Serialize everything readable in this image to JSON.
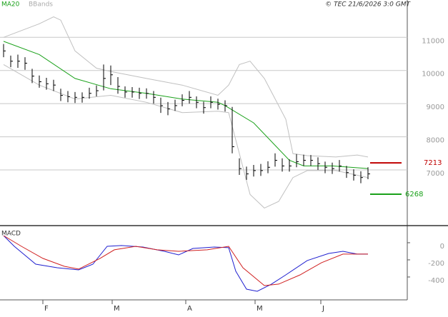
{
  "chart_data": [
    {
      "type": "ohlc",
      "source": "© TEC 21/6/2026 3:0 GMT",
      "xlim": [
        -0.5,
        56.5
      ],
      "xticks": [
        {
          "value": 5.5,
          "label": "F"
        },
        {
          "value": 15.2,
          "label": "M"
        },
        {
          "value": 25.5,
          "label": "A"
        },
        {
          "value": 35.2,
          "label": "M"
        },
        {
          "value": 44.4,
          "label": "J"
        }
      ],
      "ylim": [
        5320,
        11825
      ],
      "yticks": [
        7000,
        8000,
        9000,
        10000,
        11000
      ],
      "grid": true,
      "color": "#000000",
      "x": [
        0,
        1,
        2,
        3,
        4,
        5,
        6,
        7,
        8,
        9,
        10,
        11,
        12,
        13,
        14,
        15,
        16,
        17,
        18,
        19,
        20,
        21,
        22,
        23,
        24,
        25,
        26,
        27,
        28,
        29,
        30,
        31,
        32,
        33,
        34,
        35,
        36,
        37,
        38,
        39,
        40,
        41,
        42,
        43,
        44,
        45,
        46,
        47,
        48,
        49,
        50,
        51
      ],
      "close": [
        10590,
        10280,
        10280,
        10220,
        9830,
        9660,
        9600,
        9560,
        9250,
        9210,
        9190,
        9190,
        9310,
        9390,
        9760,
        9870,
        9520,
        9350,
        9350,
        9310,
        9310,
        9190,
        8940,
        8840,
        8940,
        9100,
        9190,
        9040,
        8880,
        9040,
        8980,
        8940,
        7700,
        7040,
        6880,
        6980,
        6980,
        7080,
        7290,
        7120,
        7120,
        7250,
        7290,
        7290,
        7190,
        7080,
        7040,
        7120,
        6920,
        6840,
        6770,
        6880
      ],
      "high": [
        10800,
        10450,
        10480,
        10400,
        10050,
        9850,
        9780,
        9720,
        9450,
        9380,
        9350,
        9340,
        9480,
        9550,
        10180,
        10150,
        9800,
        9520,
        9500,
        9480,
        9460,
        9380,
        9180,
        9050,
        9120,
        9280,
        9380,
        9220,
        9060,
        9220,
        9150,
        9100,
        8900,
        7350,
        7100,
        7150,
        7180,
        7260,
        7500,
        7350,
        7320,
        7480,
        7460,
        7450,
        7380,
        7250,
        7220,
        7300,
        7120,
        7020,
        6960,
        7080
      ],
      "low": [
        10400,
        10100,
        10080,
        10020,
        9620,
        9480,
        9420,
        9380,
        9080,
        9040,
        9020,
        9030,
        9150,
        9220,
        9400,
        9560,
        9300,
        9180,
        9180,
        9140,
        9150,
        9000,
        8720,
        8650,
        8780,
        8920,
        9000,
        8860,
        8700,
        8860,
        8820,
        8760,
        7500,
        6850,
        6700,
        6800,
        6820,
        6900,
        7100,
        6950,
        6950,
        7080,
        7120,
        7120,
        7000,
        6900,
        6880,
        6950,
        6760,
        6680,
        6600,
        6720
      ],
      "series": [
        {
          "name": "MA20",
          "color": "#1aa11a",
          "x": [
            0,
            5,
            10,
            15,
            20,
            25,
            30,
            31,
            35,
            40,
            42,
            46,
            51
          ],
          "values": [
            10880,
            10480,
            9760,
            9450,
            9310,
            9140,
            9040,
            8940,
            8420,
            7290,
            7120,
            7120,
            7040
          ]
        }
      ],
      "bbands": {
        "name": "BBands",
        "color": "#c0c0c0",
        "upper": {
          "x": [
            0,
            5,
            7,
            8,
            10,
            13,
            15,
            20,
            25,
            30,
            31.5,
            33,
            34.5,
            36.5,
            39.5,
            40.5,
            42.5,
            46.5,
            49.5,
            51
          ],
          "values": [
            11000,
            11410,
            11620,
            11520,
            10590,
            10070,
            9970,
            9760,
            9560,
            9250,
            9560,
            10180,
            10280,
            9760,
            8530,
            7490,
            7430,
            7390,
            7450,
            7390
          ]
        },
        "lower": {
          "x": [
            0,
            5,
            10,
            15,
            20,
            25,
            30,
            31.5,
            33.5,
            34.5,
            36.5,
            38.5,
            40.5,
            42.5,
            46.5,
            51
          ],
          "values": [
            10180,
            9560,
            9140,
            9250,
            9040,
            8730,
            8770,
            8730,
            7080,
            6260,
            5850,
            6050,
            6770,
            6980,
            6980,
            6770
          ]
        }
      },
      "levels": [
        {
          "value": 7213,
          "color": "#c00000"
        },
        {
          "value": 6268,
          "color": "#1aa11a"
        }
      ]
    },
    {
      "type": "line",
      "title": "MACD",
      "xlim": [
        -0.5,
        56.5
      ],
      "ylim": [
        -667,
        183
      ],
      "yticks": [
        0,
        -200,
        -400
      ],
      "series": [
        {
          "color": "#2020d0",
          "x": [
            0,
            1.5,
            4.5,
            7.5,
            10.5,
            12.5,
            14.5,
            16.5,
            19.5,
            22.5,
            24.5,
            26.5,
            29.5,
            31.5,
            32.5,
            34,
            35.5,
            37.5,
            39.5,
            42.5,
            45.5,
            47.5,
            49.5,
            51
          ],
          "values": [
            83,
            -42,
            -250,
            -292,
            -317,
            -250,
            -42,
            -33,
            -50,
            -100,
            -142,
            -67,
            -50,
            -58,
            -333,
            -542,
            -567,
            -483,
            -375,
            -208,
            -125,
            -100,
            -133,
            -133
          ]
        },
        {
          "color": "#d02020",
          "x": [
            0,
            2.5,
            5.5,
            8.5,
            10.5,
            13.5,
            15.5,
            18.5,
            21.5,
            24.5,
            28.5,
            31.5,
            33.5,
            36.5,
            38.5,
            41.5,
            44.5,
            47.5,
            51
          ],
          "values": [
            83,
            -42,
            -183,
            -275,
            -308,
            -183,
            -83,
            -42,
            -83,
            -100,
            -83,
            -42,
            -292,
            -500,
            -483,
            -375,
            -233,
            -133,
            -133
          ]
        }
      ]
    }
  ]
}
